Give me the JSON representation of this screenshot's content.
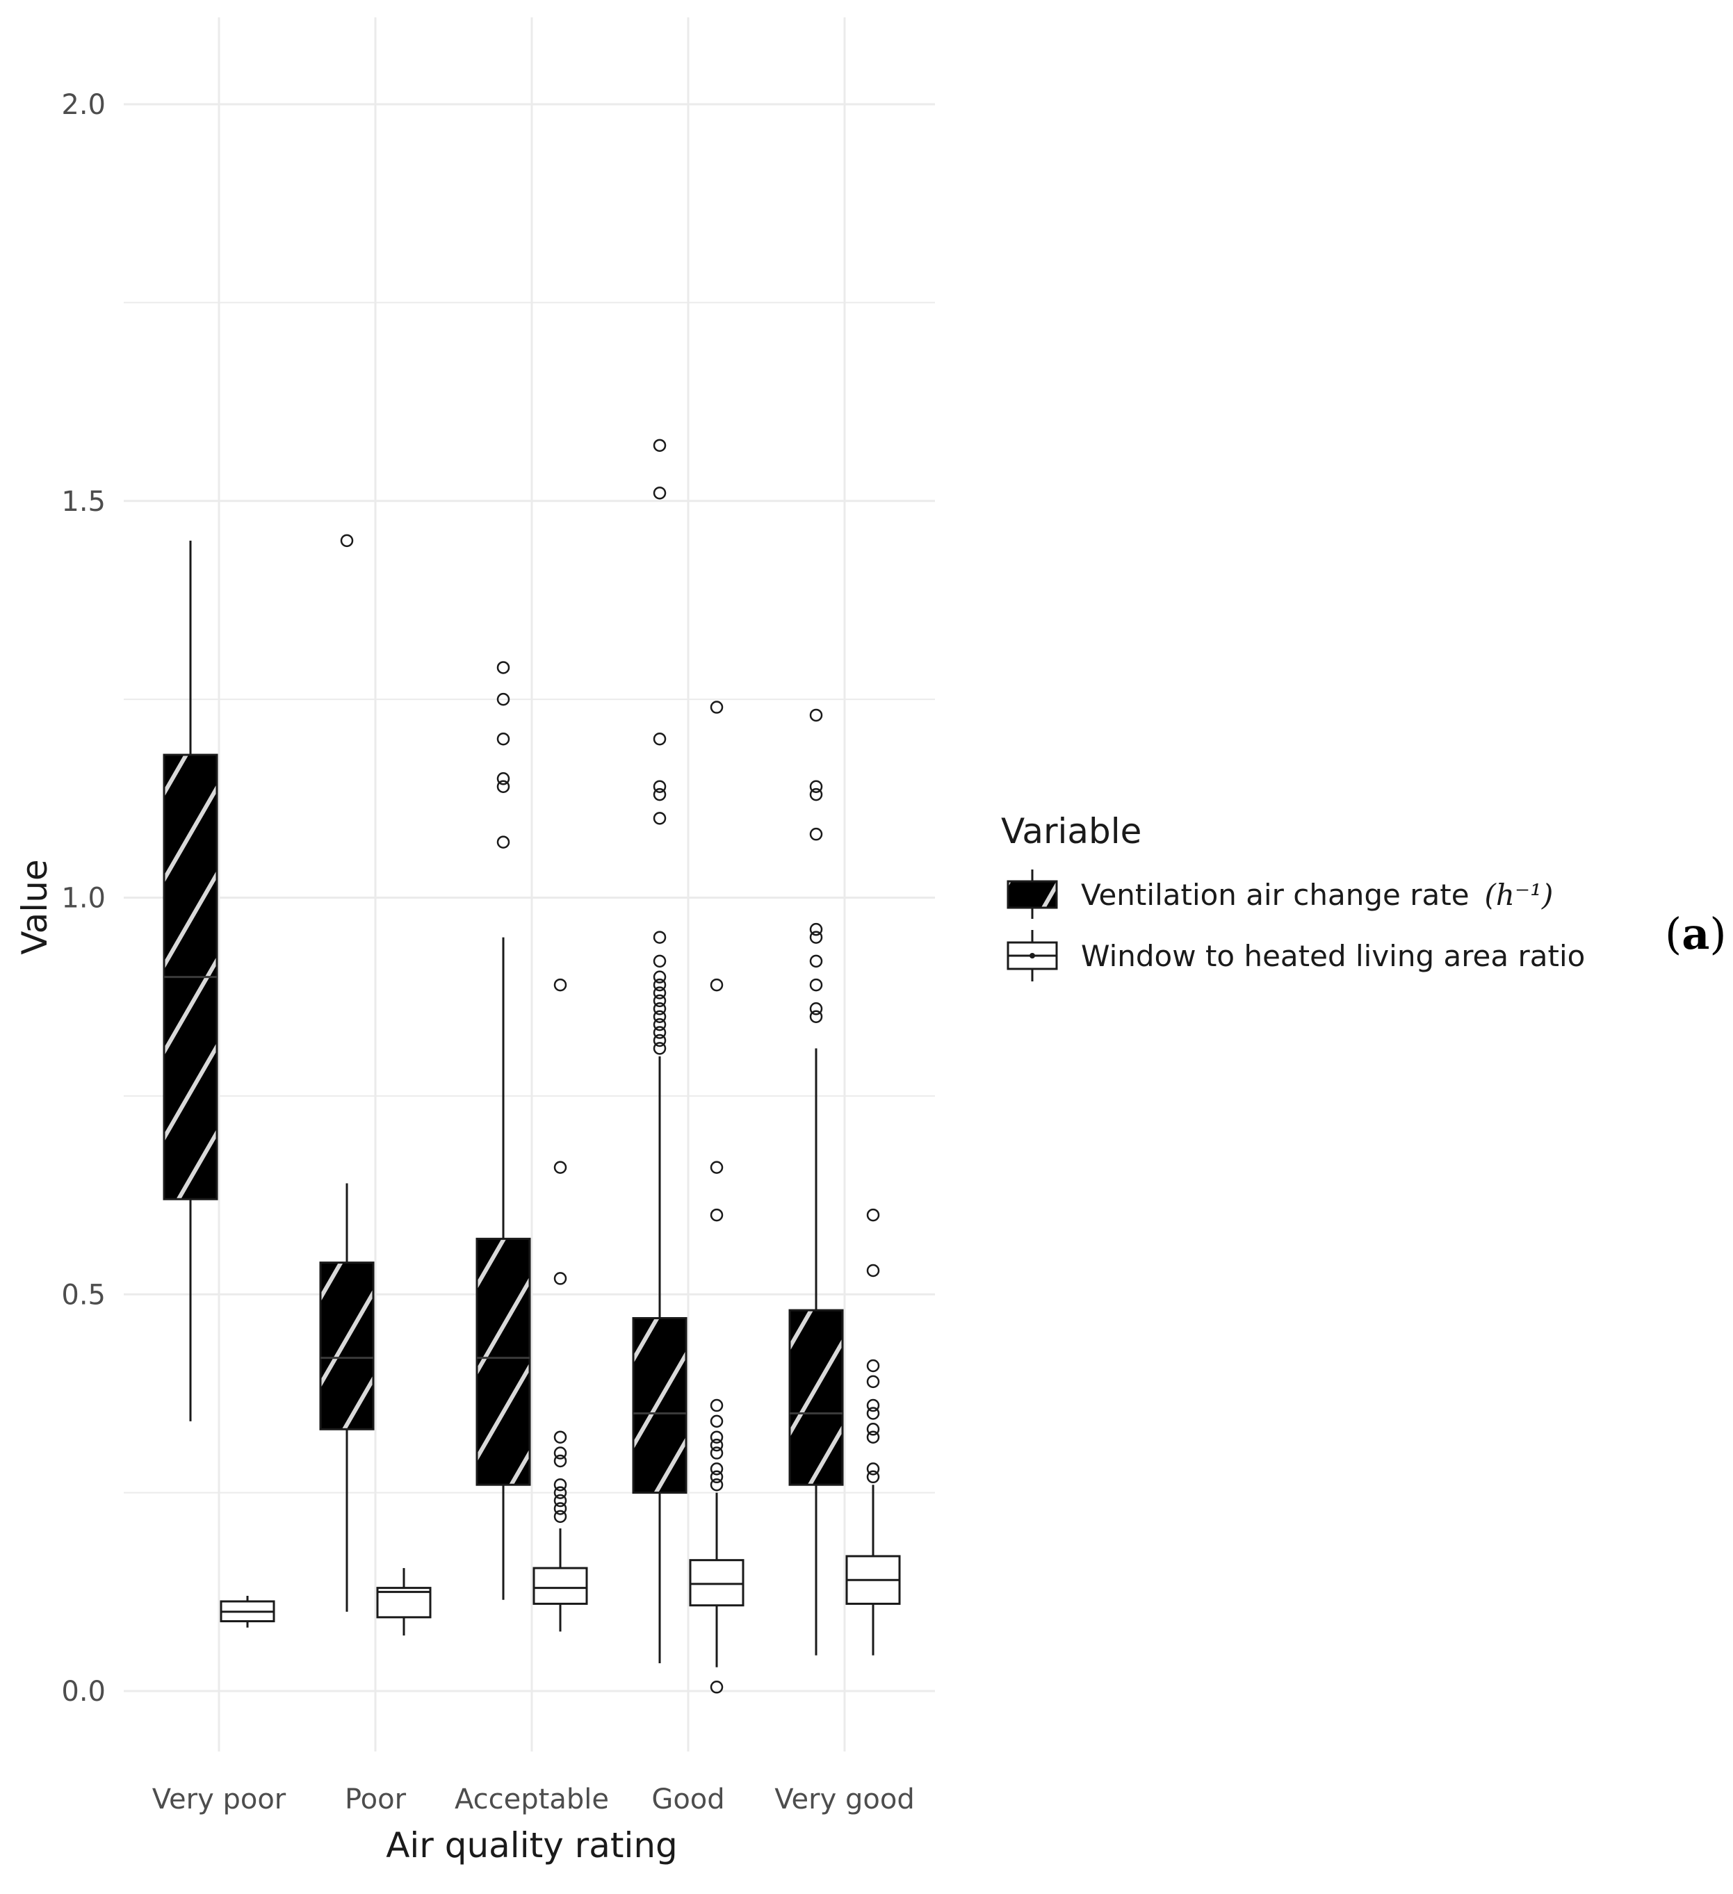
{
  "chart_data": {
    "type": "box",
    "title": "",
    "xlabel": "Air quality rating",
    "ylabel": "Value",
    "ylim": [
      -0.1,
      2.1
    ],
    "yticks": [
      0.0,
      0.5,
      1.0,
      1.5,
      2.0
    ],
    "ytick_labels": [
      "0.0",
      "0.5",
      "1.0",
      "1.5",
      "2.0"
    ],
    "grid": true,
    "categories": [
      "Very poor",
      "Poor",
      "Acceptable",
      "Good",
      "Very good"
    ],
    "legend": {
      "title": "Variable",
      "placement": "right"
    },
    "series": [
      {
        "name": "Ventilation air change rate",
        "name_unit": "(h⁻¹)",
        "fill": "#000000",
        "pattern": "white-diagonal-stripes",
        "boxes": [
          {
            "category": "Very poor",
            "whisker_low": 0.34,
            "q1": 0.62,
            "median": 0.9,
            "q3": 1.18,
            "whisker_high": 1.45,
            "outliers": []
          },
          {
            "category": "Poor",
            "whisker_low": 0.1,
            "q1": 0.33,
            "median": 0.42,
            "q3": 0.54,
            "whisker_high": 0.64,
            "outliers": [
              1.45
            ]
          },
          {
            "category": "Acceptable",
            "whisker_low": 0.115,
            "q1": 0.26,
            "median": 0.42,
            "q3": 0.57,
            "whisker_high": 0.95,
            "outliers": [
              1.07,
              1.14,
              1.15,
              1.2,
              1.25,
              1.29
            ]
          },
          {
            "category": "Good",
            "whisker_low": 0.035,
            "q1": 0.25,
            "median": 0.35,
            "q3": 0.47,
            "whisker_high": 0.8,
            "outliers": [
              0.81,
              0.82,
              0.83,
              0.84,
              0.85,
              0.86,
              0.87,
              0.88,
              0.89,
              0.9,
              0.92,
              0.95,
              1.1,
              1.13,
              1.14,
              1.2,
              1.51,
              1.57
            ]
          },
          {
            "category": "Very good",
            "whisker_low": 0.045,
            "q1": 0.26,
            "median": 0.35,
            "q3": 0.48,
            "whisker_high": 0.81,
            "outliers": [
              0.85,
              0.86,
              0.89,
              0.92,
              0.95,
              0.96,
              1.08,
              1.13,
              1.14,
              1.23
            ]
          }
        ]
      },
      {
        "name": "Window to heated living area ratio",
        "fill": "#ffffff",
        "boxes": [
          {
            "category": "Very poor",
            "whisker_low": 0.08,
            "q1": 0.088,
            "median": 0.1,
            "q3": 0.113,
            "whisker_high": 0.12,
            "outliers": []
          },
          {
            "category": "Poor",
            "whisker_low": 0.07,
            "q1": 0.093,
            "median": 0.125,
            "q3": 0.13,
            "whisker_high": 0.155,
            "outliers": []
          },
          {
            "category": "Acceptable",
            "whisker_low": 0.075,
            "q1": 0.11,
            "median": 0.13,
            "q3": 0.155,
            "whisker_high": 0.205,
            "outliers": [
              0.22,
              0.23,
              0.24,
              0.25,
              0.26,
              0.29,
              0.3,
              0.32,
              0.52,
              0.66,
              0.89
            ]
          },
          {
            "category": "Good",
            "whisker_low": 0.03,
            "q1": 0.108,
            "median": 0.135,
            "q3": 0.165,
            "whisker_high": 0.25,
            "outliers": [
              0.005,
              0.26,
              0.27,
              0.28,
              0.3,
              0.31,
              0.32,
              0.34,
              0.36,
              0.6,
              0.66,
              0.89,
              1.24
            ]
          },
          {
            "category": "Very good",
            "whisker_low": 0.045,
            "q1": 0.11,
            "median": 0.14,
            "q3": 0.17,
            "whisker_high": 0.26,
            "outliers": [
              0.27,
              0.28,
              0.32,
              0.33,
              0.35,
              0.36,
              0.39,
              0.41,
              0.53,
              0.6
            ]
          }
        ]
      }
    ]
  },
  "panel_label": {
    "open": "(",
    "letter": "a",
    "close": ")"
  },
  "colors": {
    "grid": "#ebebeb",
    "outline": "#1a1a1a",
    "stripe": "#d9d9d9"
  }
}
